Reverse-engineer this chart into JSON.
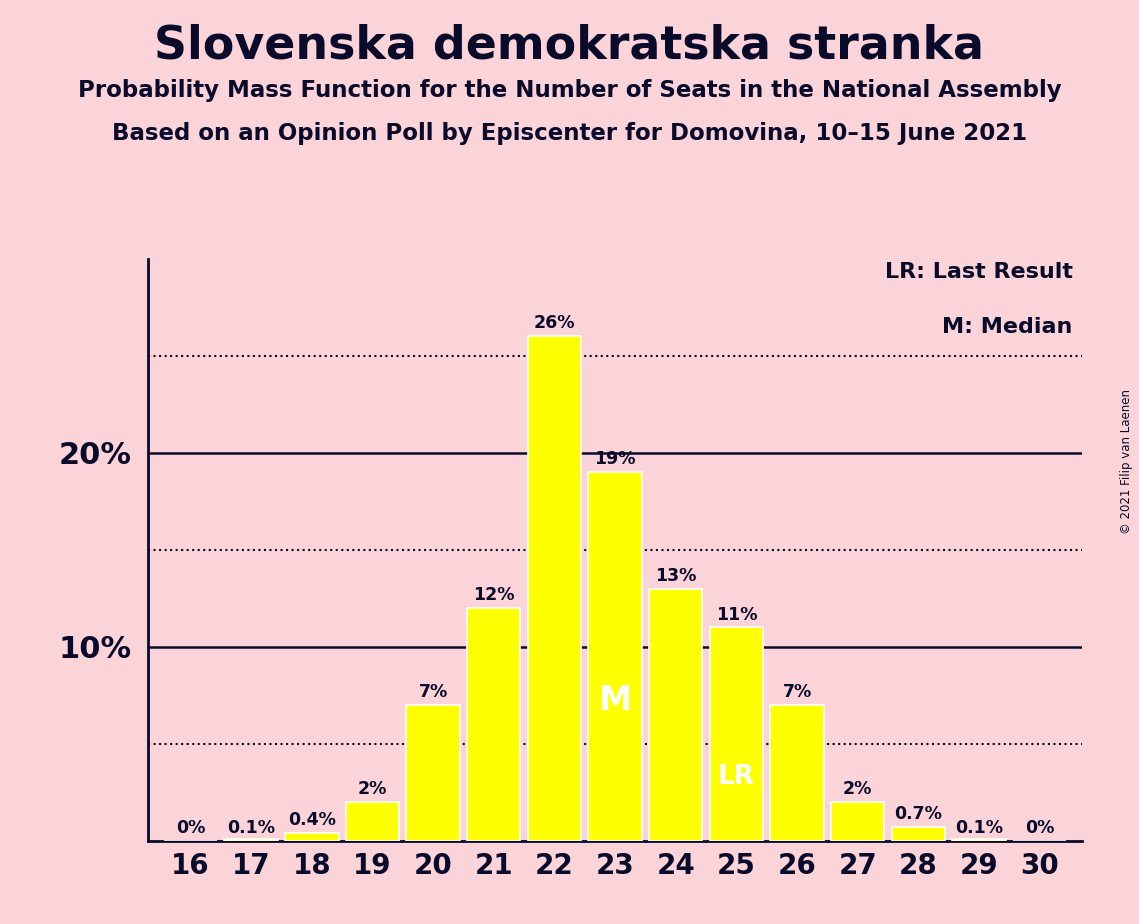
{
  "title": "Slovenska demokratska stranka",
  "subtitle1": "Probability Mass Function for the Number of Seats in the National Assembly",
  "subtitle2": "Based on an Opinion Poll by Episcenter for Domovina, 10–15 June 2021",
  "copyright": "© 2021 Filip van Laenen",
  "seats": [
    16,
    17,
    18,
    19,
    20,
    21,
    22,
    23,
    24,
    25,
    26,
    27,
    28,
    29,
    30
  ],
  "probabilities": [
    0.0,
    0.001,
    0.004,
    0.02,
    0.07,
    0.12,
    0.26,
    0.19,
    0.13,
    0.11,
    0.07,
    0.02,
    0.007,
    0.001,
    0.0
  ],
  "prob_labels": [
    "0%",
    "0.1%",
    "0.4%",
    "2%",
    "7%",
    "12%",
    "26%",
    "19%",
    "13%",
    "11%",
    "7%",
    "2%",
    "0.7%",
    "0.1%",
    "0%"
  ],
  "bar_color": "#FFFF00",
  "bar_edge_color": "#FFFFFF",
  "background_color": "#FAD4D8",
  "text_color": "#0A0A2A",
  "solid_lines": [
    0.1,
    0.2
  ],
  "dotted_lines": [
    0.05,
    0.15,
    0.25
  ],
  "LR_seat": 25,
  "M_seat": 23,
  "ylim": [
    0,
    0.3
  ],
  "yticks": [
    0.1,
    0.2
  ],
  "ytick_labels": [
    "10%",
    "20%"
  ]
}
